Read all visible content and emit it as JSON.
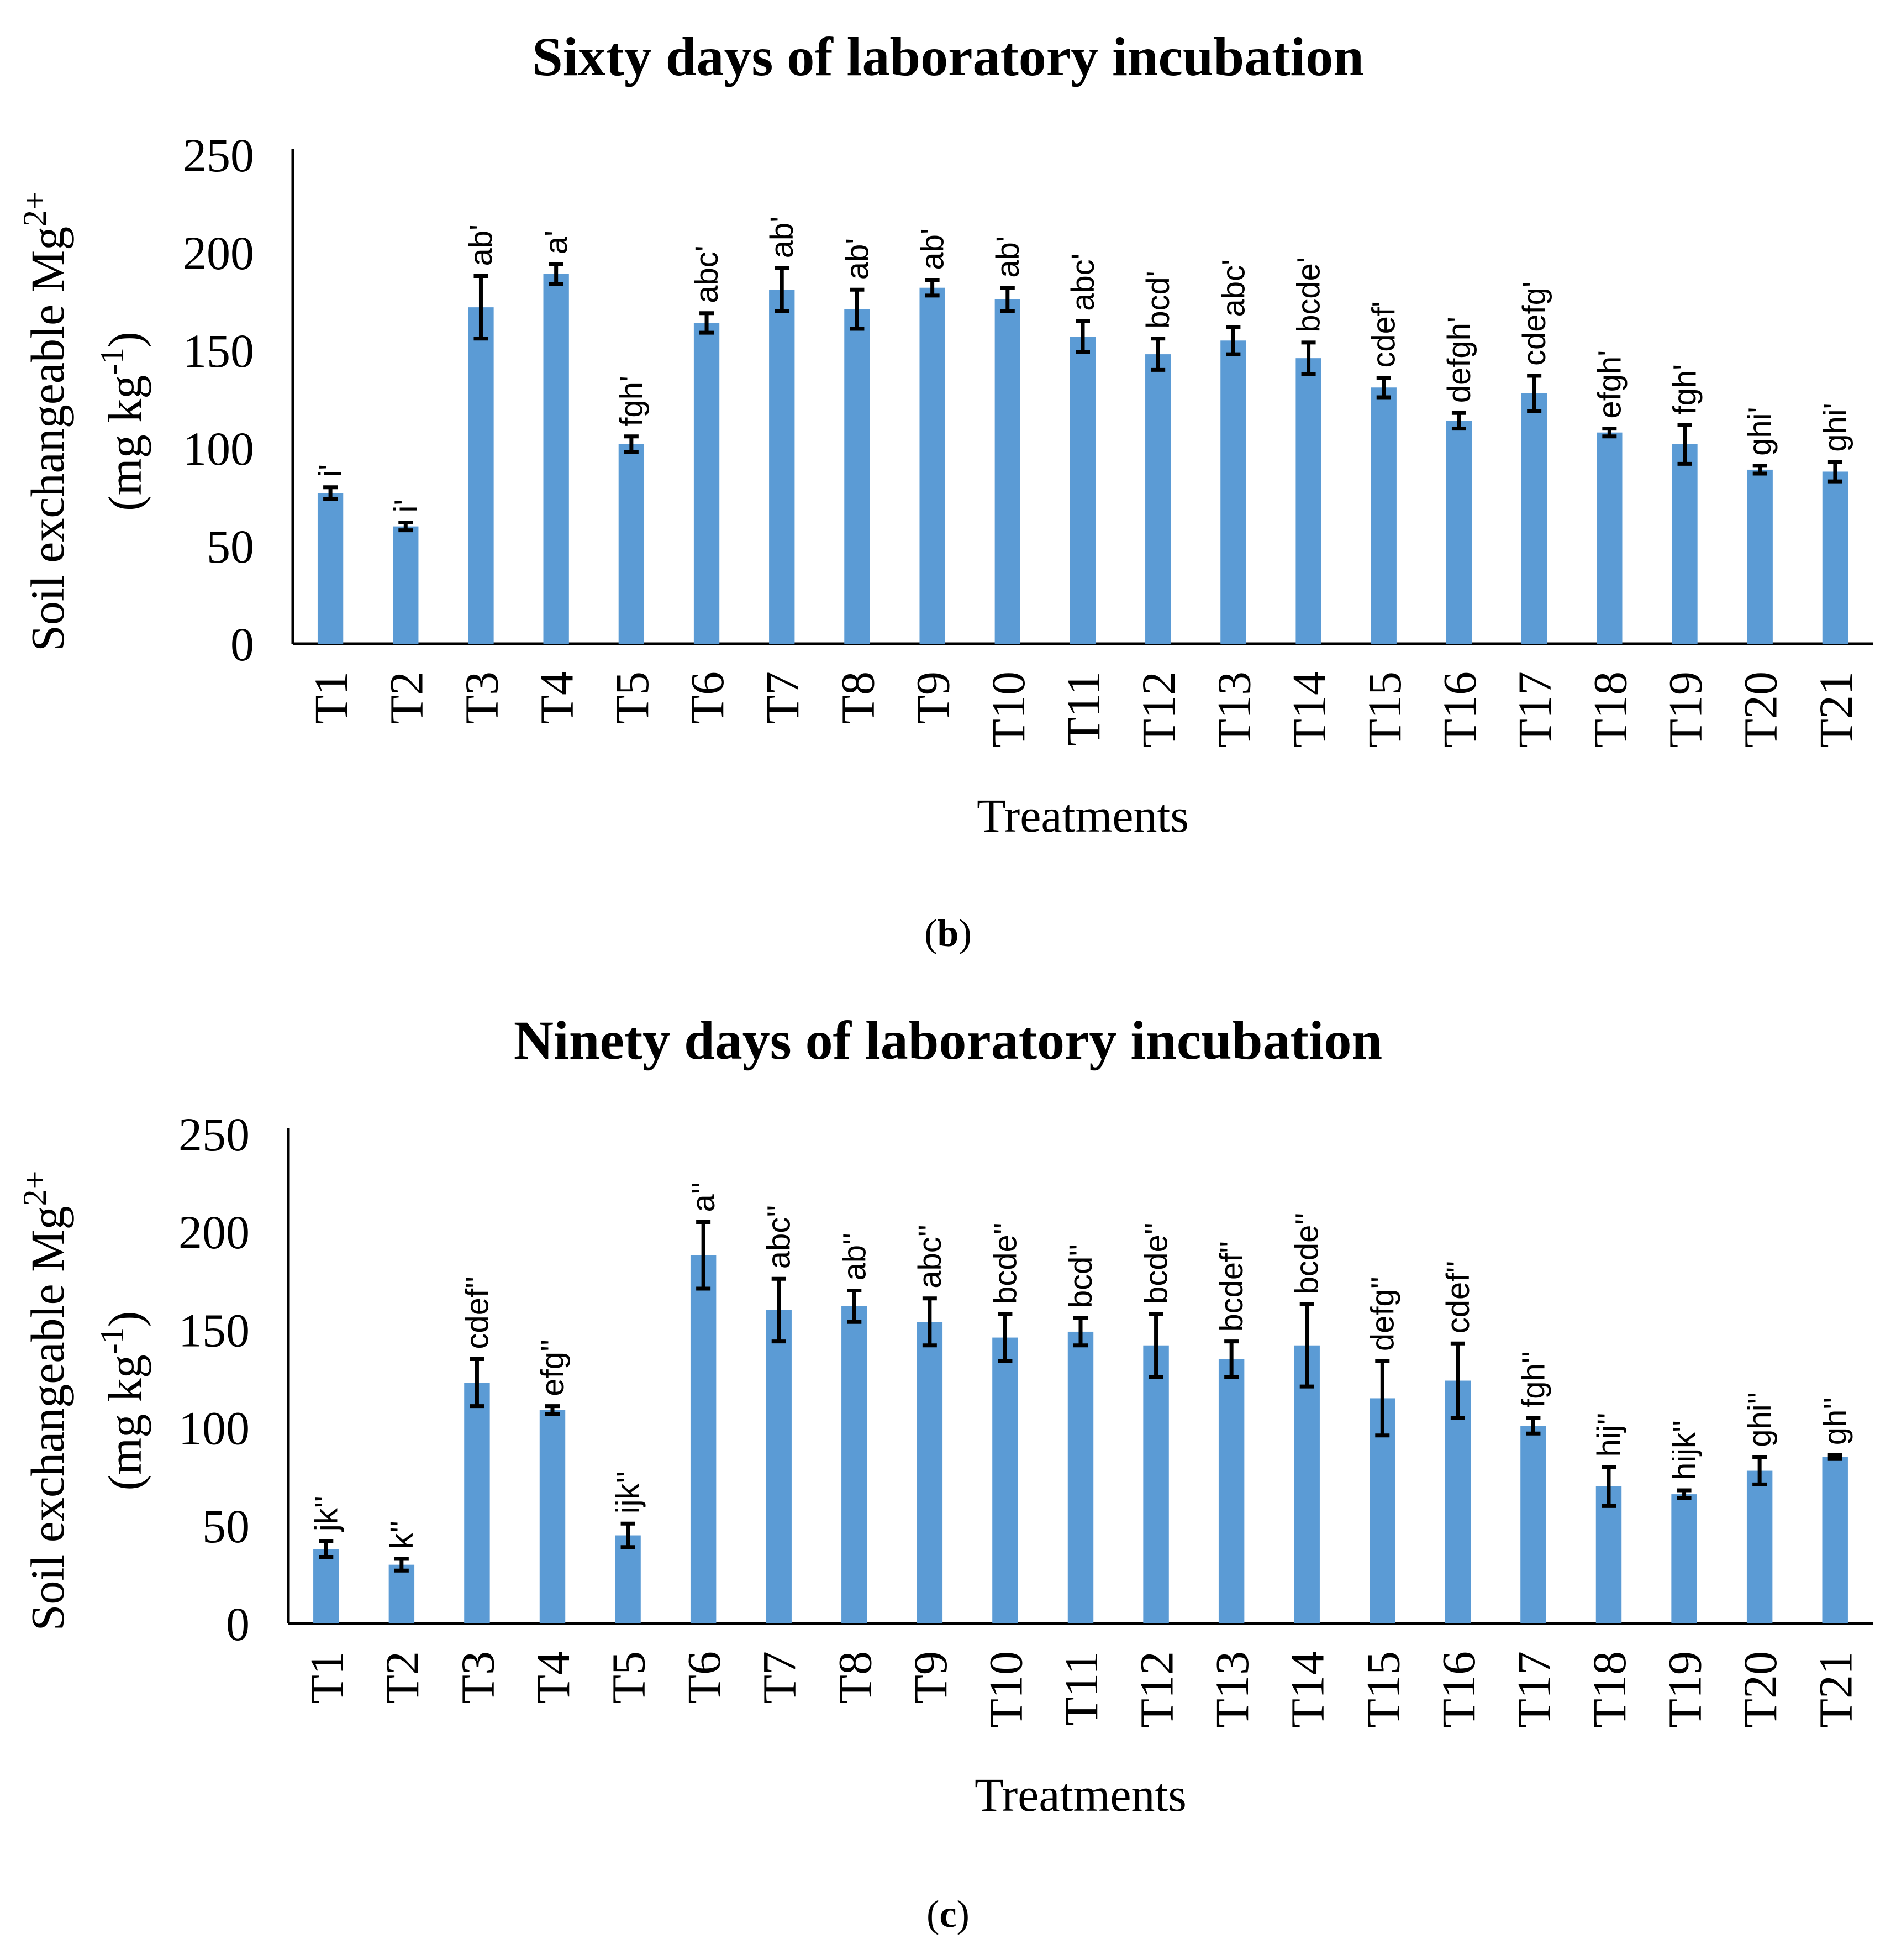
{
  "chart_data": [
    {
      "type": "bar",
      "title": "Sixty days of laboratory incubation",
      "panel_label": "b",
      "xlabel": "Treatments",
      "ylabel_line1": "Soil exchangeable Mg",
      "ylabel_line1_sup": "2+",
      "ylabel_line2_pre": "(mg kg",
      "ylabel_line2_sup": "-1",
      "ylabel_line2_post": ")",
      "ylim": [
        0,
        250
      ],
      "yticks": [
        0,
        50,
        100,
        150,
        200,
        250
      ],
      "categories": [
        "T1",
        "T2",
        "T3",
        "T4",
        "T5",
        "T6",
        "T7",
        "T8",
        "T9",
        "T10",
        "T11",
        "T12",
        "T13",
        "T14",
        "T15",
        "T16",
        "T17",
        "T18",
        "T19",
        "T20",
        "T21"
      ],
      "values": [
        77,
        60,
        172,
        189,
        102,
        164,
        181,
        171,
        182,
        176,
        157,
        148,
        155,
        146,
        131,
        114,
        128,
        108,
        102,
        89,
        88
      ],
      "errors": [
        3,
        2,
        16,
        5,
        4,
        5,
        11,
        10,
        4,
        6,
        8,
        8,
        7,
        8,
        5,
        4,
        9,
        2,
        10,
        2,
        5
      ],
      "significance": [
        "i'",
        "i'",
        "ab'",
        "a'",
        "fgh'",
        "abc'",
        "ab'",
        "ab'",
        "ab'",
        "ab'",
        "abc'",
        "bcd'",
        "abc'",
        "bcde'",
        "cdef'",
        "defgh'",
        "cdefg'",
        "efgh'",
        "fgh'",
        "ghi'",
        "ghi'"
      ],
      "color": "#5b9bd5",
      "grid": false
    },
    {
      "type": "bar",
      "title": "Ninety days of laboratory incubation",
      "panel_label": "c",
      "xlabel": "Treatments",
      "ylabel_line1": "Soil exchangeable Mg",
      "ylabel_line1_sup": "2+",
      "ylabel_line2_pre": "(mg kg",
      "ylabel_line2_sup": "-1",
      "ylabel_line2_post": ")",
      "ylim": [
        0,
        250
      ],
      "yticks": [
        0,
        50,
        100,
        150,
        200,
        250
      ],
      "categories": [
        "T1",
        "T2",
        "T3",
        "T4",
        "T5",
        "T6",
        "T7",
        "T8",
        "T9",
        "T10",
        "T11",
        "T12",
        "T13",
        "T14",
        "T15",
        "T16",
        "T17",
        "T18",
        "T19",
        "T20",
        "T21"
      ],
      "values": [
        38,
        30,
        123,
        109,
        45,
        188,
        160,
        162,
        154,
        146,
        149,
        142,
        135,
        142,
        115,
        124,
        101,
        70,
        66,
        78,
        85
      ],
      "errors": [
        4,
        3,
        12,
        2,
        6,
        17,
        16,
        8,
        12,
        12,
        7,
        16,
        9,
        21,
        19,
        19,
        4,
        10,
        2,
        7,
        1
      ],
      "significance": [
        "jk''",
        "k''",
        "cdef''",
        "efg''",
        "ijk''",
        "a''",
        "abc''",
        "ab''",
        "abc''",
        "bcde''",
        "bcd''",
        "bcde''",
        "bcdef''",
        "bcde''",
        "defg''",
        "cdef''",
        "fgh''",
        "hij''",
        "hijk''",
        "ghi''",
        "gh''"
      ],
      "color": "#5b9bd5",
      "grid": false
    }
  ]
}
